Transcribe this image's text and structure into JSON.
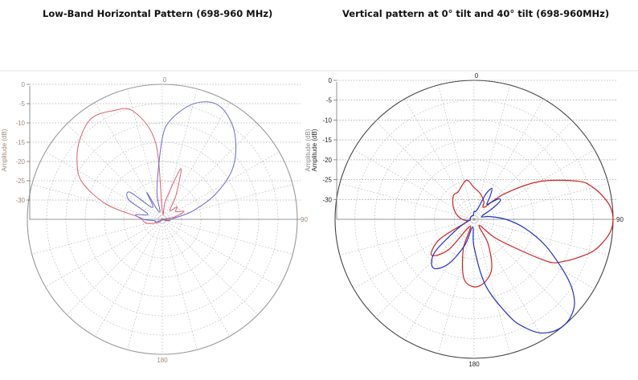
{
  "chart_data": [
    {
      "type": "polar-line",
      "title": "Low-Band Horizontal Pattern (698-960 MHz)",
      "ylabel": "Amplitude (dB)",
      "amplitude_ticks": [
        "0",
        "-5",
        "-10",
        "-15",
        "-20",
        "-25",
        "-30"
      ],
      "angle_labels": [
        "0",
        "90",
        "180"
      ],
      "rlim": [
        -35,
        0
      ],
      "grid": true,
      "colors": {
        "series_1": "#e06070",
        "series_2": "#6a6ad0"
      },
      "series": [
        {
          "color": "series_1",
          "angles_deg": [
            0,
            10,
            20,
            30,
            40,
            50,
            60,
            70,
            80,
            90,
            100,
            110,
            120,
            135,
            150,
            165,
            180,
            195,
            210,
            225,
            240,
            255,
            265,
            275,
            285,
            295,
            305,
            315,
            325,
            335,
            345,
            355
          ],
          "amplitude_db": [
            -33,
            -30,
            -21,
            -28,
            -32,
            -30,
            -31,
            -29,
            -32,
            -35,
            -33,
            -34,
            -35,
            -35,
            -35,
            -35,
            -35,
            -35,
            -35,
            -34,
            -33,
            -31,
            -30,
            -29,
            -20,
            -12,
            -8,
            -5,
            -3,
            -4,
            -6,
            -15
          ]
        },
        {
          "color": "series_2",
          "angles_deg": [
            0,
            5,
            15,
            25,
            35,
            45,
            55,
            65,
            75,
            85,
            95,
            105,
            120,
            135,
            150,
            165,
            180,
            195,
            210,
            225,
            240,
            250,
            260,
            270,
            280,
            290,
            300,
            310,
            320,
            330,
            340,
            350
          ],
          "amplitude_db": [
            -14,
            -9,
            -4,
            -2,
            -4,
            -8,
            -13,
            -20,
            -27,
            -32,
            -33,
            -34,
            -35,
            -35,
            -35,
            -35,
            -35,
            -35,
            -35,
            -35,
            -34,
            -33,
            -33,
            -30,
            -28,
            -31,
            -25,
            -24,
            -31,
            -27,
            -33,
            -27
          ]
        }
      ]
    },
    {
      "type": "polar-line",
      "title": "Vertical pattern at 0° tilt and 40° tilt (698-960MHz)",
      "ylabel": "Amplitude (dB)",
      "amplitude_ticks": [
        "0",
        "-5",
        "-10",
        "-15",
        "-20",
        "-25",
        "-30"
      ],
      "angle_labels": [
        "0",
        "90",
        "180"
      ],
      "rlim": [
        -35,
        0
      ],
      "grid": true,
      "colors": {
        "series_1": "#d42020",
        "series_2": "#2030c8"
      },
      "series": [
        {
          "color": "series_1",
          "angles_deg": [
            0,
            10,
            20,
            30,
            40,
            50,
            60,
            70,
            75,
            80,
            85,
            90,
            95,
            100,
            105,
            110,
            115,
            120,
            130,
            140,
            150,
            160,
            170,
            180,
            190,
            200,
            210,
            220,
            230,
            240,
            250,
            260,
            270,
            280,
            290,
            300,
            310,
            320,
            330,
            340,
            350
          ],
          "amplitude_db": [
            -27,
            -28,
            -29,
            -30,
            -31,
            -25,
            -16,
            -7,
            -4,
            -2,
            -0.5,
            0,
            -0.5,
            -2,
            -4,
            -7,
            -10,
            -14,
            -27,
            -33,
            -28,
            -22,
            -19,
            -18,
            -20,
            -27,
            -33,
            -25,
            -21,
            -25,
            -33,
            -33,
            -32,
            -31,
            -30,
            -29,
            -28,
            -27,
            -27,
            -26,
            -25
          ]
        },
        {
          "color": "series_2",
          "angles_deg": [
            0,
            10,
            20,
            25,
            30,
            35,
            40,
            45,
            50,
            55,
            60,
            70,
            80,
            90,
            100,
            110,
            120,
            125,
            130,
            135,
            140,
            145,
            150,
            155,
            160,
            170,
            180,
            190,
            200,
            210,
            220,
            230,
            240,
            250,
            260,
            270,
            280,
            290,
            300,
            310,
            320,
            330,
            340,
            350
          ],
          "amplitude_db": [
            -33,
            -33,
            -32,
            -28,
            -26,
            -28,
            -30,
            -29,
            -27,
            -27,
            -30,
            -33,
            -31,
            -27,
            -22,
            -16,
            -9,
            -5,
            -2,
            -0.5,
            0,
            -0.5,
            -2,
            -5,
            -9,
            -18,
            -28,
            -33,
            -28,
            -22,
            -19,
            -22,
            -30,
            -33,
            -34,
            -34,
            -34,
            -34,
            -34,
            -34,
            -34,
            -34,
            -34,
            -34
          ]
        }
      ]
    }
  ]
}
